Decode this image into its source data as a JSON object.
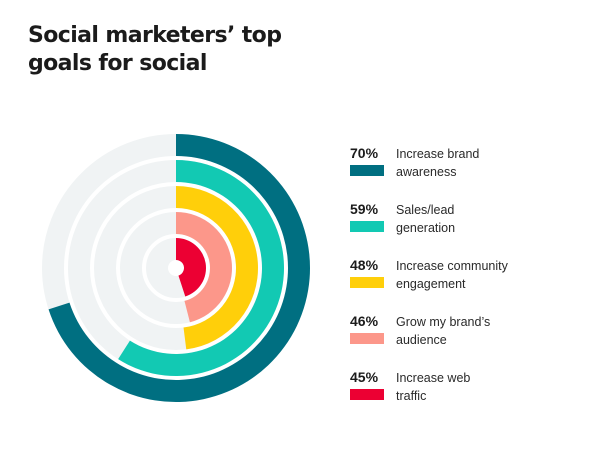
{
  "title_line1": "Social marketers’ top",
  "title_line2": "goals for social",
  "track_color": "#f0f3f4",
  "chart_data": {
    "type": "radial-bar",
    "title": "Social marketers’ top goals for social",
    "unit": "%",
    "series": [
      {
        "label_line1": "Increase brand",
        "label_line2": "awareness",
        "value": 70,
        "value_label": "70%",
        "color": "#006f81"
      },
      {
        "label_line1": "Sales/lead",
        "label_line2": "generation",
        "value": 59,
        "value_label": "59%",
        "color": "#12c9b3"
      },
      {
        "label_line1": "Increase community",
        "label_line2": "engagement",
        "value": 48,
        "value_label": "48%",
        "color": "#ffcf0a"
      },
      {
        "label_line1": "Grow my brand’s",
        "label_line2": "audience",
        "value": 46,
        "value_label": "46%",
        "color": "#fc978a"
      },
      {
        "label_line1": "Increase web",
        "label_line2": "traffic",
        "value": 45,
        "value_label": "45%",
        "color": "#ec0033"
      }
    ]
  }
}
